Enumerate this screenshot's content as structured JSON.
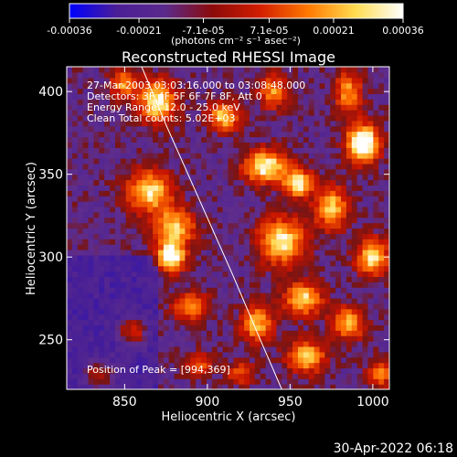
{
  "chart_data": {
    "type": "heatmap",
    "title": "Reconstructed RHESSI Image",
    "xlabel": "Heliocentric X (arcsec)",
    "ylabel": "Heliocentric Y (arcsec)",
    "xlim": [
      815,
      1010
    ],
    "ylim": [
      220,
      415
    ],
    "x_ticks": [
      850,
      900,
      950,
      1000
    ],
    "x_tick_labels": [
      "850",
      "900",
      "950",
      "1000"
    ],
    "y_ticks": [
      250,
      300,
      350,
      400
    ],
    "y_tick_labels": [
      "250",
      "300",
      "350",
      "400"
    ],
    "colorbar": {
      "range": [
        -0.00036,
        0.00036
      ],
      "ticks": [
        -0.00036,
        -0.00021,
        -7.1e-05,
        7.1e-05,
        0.00021,
        0.00036
      ],
      "tick_labels": [
        "-0.00036",
        "-0.00021",
        "-7.1e-05",
        "7.1e-05",
        "0.00021",
        "0.00036"
      ],
      "label": "(photons cm⁻² s⁻¹ asec⁻²)",
      "colors": [
        "#0000ff",
        "#4b1e96",
        "#5a2a8c",
        "#8c0a0a",
        "#d21e00",
        "#ff7800",
        "#ffdc50",
        "#ffffff"
      ]
    },
    "annotations": [
      "27-Mar-2003 03:03:16.000 to 03:08:48.000",
      "Detectors: 3F 4F 5F 6F 7F 8F, Att 0",
      "Energy Range: 12.0 - 25.0 keV",
      "Clean     Total counts: 5.02E+03"
    ],
    "peak_text": "Position of Peak = [994,369]",
    "peak": [
      994,
      369
    ],
    "limb_curve": [
      [
        859,
        418
      ],
      [
        875,
        380
      ],
      [
        895,
        335
      ],
      [
        915,
        290
      ],
      [
        932,
        250
      ],
      [
        945,
        220
      ]
    ],
    "sources": [
      {
        "x": 870,
        "y": 394,
        "sx": 8,
        "sy": 9,
        "amp": 1.0
      },
      {
        "x": 865,
        "y": 340,
        "sx": 10,
        "sy": 9,
        "amp": 0.9
      },
      {
        "x": 880,
        "y": 318,
        "sx": 9,
        "sy": 8,
        "amp": 0.85
      },
      {
        "x": 878,
        "y": 300,
        "sx": 6,
        "sy": 6,
        "amp": 1.15
      },
      {
        "x": 890,
        "y": 270,
        "sx": 8,
        "sy": 6,
        "amp": 0.7
      },
      {
        "x": 855,
        "y": 255,
        "sx": 6,
        "sy": 6,
        "amp": 0.6
      },
      {
        "x": 835,
        "y": 230,
        "sx": 7,
        "sy": 6,
        "amp": 0.45
      },
      {
        "x": 910,
        "y": 385,
        "sx": 7,
        "sy": 6,
        "amp": 0.85
      },
      {
        "x": 935,
        "y": 355,
        "sx": 9,
        "sy": 7,
        "amp": 1.05
      },
      {
        "x": 955,
        "y": 345,
        "sx": 6,
        "sy": 6,
        "amp": 1.0
      },
      {
        "x": 975,
        "y": 330,
        "sx": 7,
        "sy": 9,
        "amp": 0.85
      },
      {
        "x": 945,
        "y": 310,
        "sx": 10,
        "sy": 10,
        "amp": 0.95
      },
      {
        "x": 958,
        "y": 275,
        "sx": 8,
        "sy": 7,
        "amp": 0.9
      },
      {
        "x": 930,
        "y": 260,
        "sx": 7,
        "sy": 8,
        "amp": 0.8
      },
      {
        "x": 960,
        "y": 240,
        "sx": 8,
        "sy": 7,
        "amp": 0.85
      },
      {
        "x": 985,
        "y": 260,
        "sx": 7,
        "sy": 7,
        "amp": 0.8
      },
      {
        "x": 1000,
        "y": 300,
        "sx": 7,
        "sy": 8,
        "amp": 0.9
      },
      {
        "x": 994,
        "y": 369,
        "sx": 7,
        "sy": 8,
        "amp": 1.3
      },
      {
        "x": 985,
        "y": 400,
        "sx": 6,
        "sy": 9,
        "amp": 0.7
      },
      {
        "x": 1005,
        "y": 230,
        "sx": 6,
        "sy": 6,
        "amp": 0.6
      },
      {
        "x": 920,
        "y": 230,
        "sx": 6,
        "sy": 5,
        "amp": 0.5
      },
      {
        "x": 940,
        "y": 400,
        "sx": 6,
        "sy": 7,
        "amp": 0.7
      },
      {
        "x": 850,
        "y": 405,
        "sx": 6,
        "sy": 6,
        "amp": 0.7
      },
      {
        "x": 895,
        "y": 235,
        "sx": 6,
        "sy": 5,
        "amp": 0.5
      }
    ]
  },
  "timestamp": "30-Apr-2022 06:18"
}
